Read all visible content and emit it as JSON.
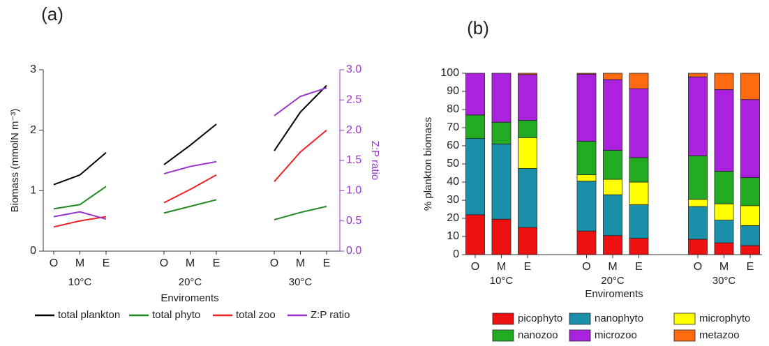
{
  "chart_data": [
    {
      "type": "line",
      "title": "(a)",
      "categories": [
        "O",
        "M",
        "E",
        "O",
        "M",
        "E",
        "O",
        "M",
        "E"
      ],
      "groups": [
        "10°C",
        "20°C",
        "30°C"
      ],
      "x_label": "Enviroments",
      "y_label": "Biomass (mmolN m⁻³)",
      "y2_label": "Z:P ratio",
      "ylim": [
        0,
        3
      ],
      "yticks": [
        0,
        1,
        2,
        3
      ],
      "y2lim": [
        0,
        3
      ],
      "y2ticks": [
        {
          "value": 0,
          "label": "0.0"
        },
        0.5,
        {
          "value": 1,
          "label": "1.0"
        },
        1.5,
        {
          "value": 2,
          "label": "2.0"
        },
        2.5,
        {
          "value": 3,
          "label": "3.0"
        }
      ],
      "y2_color": "#9933cc",
      "series": [
        {
          "name": "total plankton",
          "color": "#000000",
          "values": [
            1.1,
            1.26,
            1.63,
            1.43,
            1.75,
            2.1,
            1.66,
            2.3,
            2.74
          ]
        },
        {
          "name": "total phyto",
          "color": "#1f8a1f",
          "values": [
            0.7,
            0.77,
            1.07,
            0.63,
            0.74,
            0.85,
            0.52,
            0.64,
            0.74
          ]
        },
        {
          "name": "total zoo",
          "color": "#ee2222",
          "values": [
            0.4,
            0.5,
            0.57,
            0.8,
            1.02,
            1.26,
            1.15,
            1.64,
            2.0
          ]
        },
        {
          "name": "Z:P ratio",
          "color": "#9933cc",
          "axis": "y2",
          "values": [
            0.57,
            0.65,
            0.53,
            1.28,
            1.4,
            1.48,
            2.24,
            2.56,
            2.7
          ]
        }
      ]
    },
    {
      "type": "stacked_bar",
      "title": "(b)",
      "categories": [
        "O",
        "M",
        "E",
        "O",
        "M",
        "E",
        "O",
        "M",
        "E"
      ],
      "groups": [
        "10°C",
        "20°C",
        "30°C"
      ],
      "x_label": "Enviroments",
      "y_label": "% plankton biomass",
      "ylim": [
        0,
        100
      ],
      "yticks": [
        0,
        10,
        20,
        30,
        40,
        50,
        60,
        70,
        80,
        90,
        100
      ],
      "series": [
        {
          "name": "picophyto",
          "color": "#ee1111",
          "values": [
            22,
            19.5,
            15,
            13,
            10.5,
            9,
            8.5,
            6.5,
            5
          ]
        },
        {
          "name": "nanophyto",
          "color": "#1a8faa",
          "values": [
            42,
            41.5,
            32.5,
            27.5,
            22.5,
            18.5,
            18,
            12.5,
            11
          ]
        },
        {
          "name": "microphyto",
          "color": "#ffff00",
          "values": [
            0,
            0,
            17,
            3.5,
            8.5,
            12.5,
            4,
            9,
            11
          ]
        },
        {
          "name": "nanozoo",
          "color": "#22aa22",
          "values": [
            13,
            12,
            9.5,
            18.5,
            16,
            13.5,
            24,
            18,
            15.5
          ]
        },
        {
          "name": "microzoo",
          "color": "#aa22dd",
          "values": [
            23,
            27,
            25.3,
            37,
            39,
            38,
            43.5,
            45,
            43
          ]
        },
        {
          "name": "metazoo",
          "color": "#ff6a10",
          "values": [
            0,
            0,
            0.7,
            0.5,
            3.5,
            8.5,
            2,
            9,
            14.5
          ]
        }
      ]
    }
  ]
}
